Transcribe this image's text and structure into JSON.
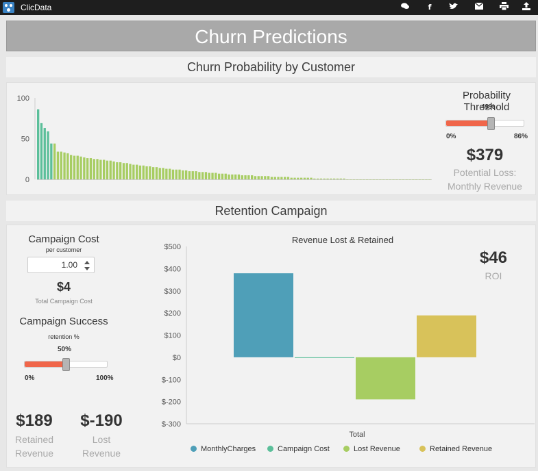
{
  "app": {
    "name": "ClicData"
  },
  "toolbar": {
    "icons": [
      "comment-icon",
      "facebook-icon",
      "twitter-icon",
      "email-icon",
      "print-icon",
      "export-icon"
    ]
  },
  "page": {
    "title": "Churn Predictions"
  },
  "churn_section": {
    "title": "Churn Probability by Customer",
    "threshold": {
      "label": "Probability Threshold",
      "value_label": "49%",
      "min_label": "0%",
      "max_label": "86%",
      "fraction": 0.57
    },
    "potential_loss": {
      "value": "$379",
      "label_line1": "Potential Loss:",
      "label_line2": "Monthly Revenue"
    }
  },
  "campaign_section": {
    "title": "Retention Campaign",
    "cost": {
      "label": "Campaign Cost",
      "sublabel": "per customer",
      "input_value": "1.00",
      "total_value": "$4",
      "total_label": "Total Campaign Cost"
    },
    "success": {
      "label": "Campaign Success",
      "sublabel": "retention %",
      "value_label": "50%",
      "min_label": "0%",
      "max_label": "100%",
      "fraction": 0.5
    },
    "retained": {
      "value": "$189",
      "label_line1": "Retained",
      "label_line2": "Revenue"
    },
    "lost": {
      "value": "$-190",
      "label_line1": "Lost",
      "label_line2": "Revenue"
    },
    "roi": {
      "value": "$46",
      "label": "ROI"
    }
  },
  "colors": {
    "teal": "#5bbf9a",
    "green": "#a7cd62",
    "blue": "#4f9fb8",
    "gold": "#d8c25a",
    "slider_fill": "#f0664a"
  },
  "chart_data": [
    {
      "type": "bar",
      "title": "",
      "ylim": [
        0,
        100
      ],
      "yticks": [
        0,
        50,
        100
      ],
      "threshold_index": 5,
      "values": [
        86,
        69,
        63,
        59,
        44,
        44,
        34,
        34,
        33,
        32,
        30,
        29,
        29,
        28,
        27,
        26,
        26,
        25,
        25,
        24,
        24,
        23,
        23,
        22,
        21,
        21,
        20,
        20,
        19,
        18,
        18,
        17,
        17,
        16,
        16,
        15,
        15,
        14,
        14,
        13,
        13,
        12,
        12,
        12,
        11,
        11,
        10,
        10,
        10,
        9,
        9,
        9,
        8,
        8,
        8,
        7,
        7,
        7,
        6,
        6,
        6,
        6,
        5,
        5,
        5,
        5,
        4,
        4,
        4,
        4,
        4,
        3,
        3,
        3,
        3,
        3,
        3,
        2,
        2,
        2,
        2,
        2,
        2,
        2,
        1,
        1,
        1,
        1,
        1,
        1,
        1,
        1,
        1,
        1,
        0,
        0,
        0,
        0,
        0,
        0,
        0,
        0,
        0,
        0,
        0,
        0,
        0,
        0,
        0,
        0,
        0,
        0,
        0,
        0,
        0,
        0,
        0,
        0,
        0,
        0
      ]
    },
    {
      "type": "bar",
      "title": "Revenue Lost & Retained",
      "xlabel": "Total",
      "ylim": [
        -300,
        500
      ],
      "yticks": [
        "$-300",
        "$-200",
        "$-100",
        "$0",
        "$100",
        "$200",
        "$300",
        "$400",
        "$500"
      ],
      "series": [
        {
          "name": "MonthlyCharges",
          "values": [
            379
          ]
        },
        {
          "name": "Campaign Cost",
          "values": [
            -4
          ]
        },
        {
          "name": "Lost Revenue",
          "values": [
            -190
          ]
        },
        {
          "name": "Retained Revenue",
          "values": [
            189
          ]
        }
      ]
    }
  ]
}
